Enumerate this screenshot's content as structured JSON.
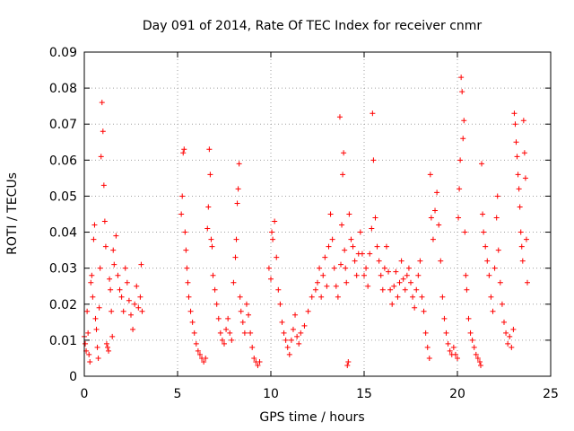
{
  "chart_data": {
    "type": "scatter",
    "title": "Day 091 of 2014, Rate Of TEC Index for receiver cnmr",
    "xlabel": "GPS time / hours",
    "ylabel": "ROTI / TECUs",
    "xlim": [
      0,
      25
    ],
    "ylim": [
      0,
      0.09
    ],
    "xticks": [
      "0",
      "5",
      "10",
      "15",
      "20",
      "25"
    ],
    "xtick_values": [
      0,
      5,
      10,
      15,
      20,
      25
    ],
    "yticks": [
      "0",
      "0.01",
      "0.02",
      "0.03",
      "0.04",
      "0.05",
      "0.06",
      "0.07",
      "0.08",
      "0.09"
    ],
    "ytick_values": [
      0,
      0.01,
      0.02,
      0.03,
      0.04,
      0.05,
      0.06,
      0.07,
      0.08,
      0.09
    ],
    "grid": true,
    "marker": "+",
    "color": "#ff0000",
    "series": [
      {
        "name": "ROTI",
        "points": [
          [
            0.0,
            0.011
          ],
          [
            0.05,
            0.009
          ],
          [
            0.1,
            0.007
          ],
          [
            0.15,
            0.018
          ],
          [
            0.2,
            0.012
          ],
          [
            0.25,
            0.006
          ],
          [
            0.3,
            0.004
          ],
          [
            0.35,
            0.026
          ],
          [
            0.4,
            0.028
          ],
          [
            0.45,
            0.022
          ],
          [
            0.5,
            0.038
          ],
          [
            0.55,
            0.042
          ],
          [
            0.6,
            0.016
          ],
          [
            0.65,
            0.013
          ],
          [
            0.7,
            0.008
          ],
          [
            0.75,
            0.005
          ],
          [
            0.8,
            0.019
          ],
          [
            0.85,
            0.03
          ],
          [
            0.9,
            0.061
          ],
          [
            0.95,
            0.076
          ],
          [
            1.0,
            0.068
          ],
          [
            1.05,
            0.053
          ],
          [
            1.1,
            0.043
          ],
          [
            1.15,
            0.036
          ],
          [
            1.2,
            0.009
          ],
          [
            1.25,
            0.008
          ],
          [
            1.3,
            0.007
          ],
          [
            1.35,
            0.027
          ],
          [
            1.4,
            0.024
          ],
          [
            1.45,
            0.018
          ],
          [
            1.5,
            0.011
          ],
          [
            1.55,
            0.035
          ],
          [
            1.6,
            0.031
          ],
          [
            1.7,
            0.039
          ],
          [
            1.8,
            0.028
          ],
          [
            1.9,
            0.024
          ],
          [
            2.0,
            0.022
          ],
          [
            2.1,
            0.018
          ],
          [
            2.2,
            0.03
          ],
          [
            2.3,
            0.026
          ],
          [
            2.4,
            0.021
          ],
          [
            2.5,
            0.017
          ],
          [
            2.6,
            0.013
          ],
          [
            2.7,
            0.02
          ],
          [
            2.8,
            0.025
          ],
          [
            2.9,
            0.019
          ],
          [
            3.0,
            0.022
          ],
          [
            3.05,
            0.031
          ],
          [
            3.1,
            0.018
          ],
          [
            5.2,
            0.045
          ],
          [
            5.25,
            0.05
          ],
          [
            5.3,
            0.062
          ],
          [
            5.35,
            0.063
          ],
          [
            5.4,
            0.04
          ],
          [
            5.45,
            0.035
          ],
          [
            5.5,
            0.03
          ],
          [
            5.55,
            0.026
          ],
          [
            5.6,
            0.022
          ],
          [
            5.7,
            0.018
          ],
          [
            5.8,
            0.015
          ],
          [
            5.9,
            0.012
          ],
          [
            6.0,
            0.009
          ],
          [
            6.1,
            0.007
          ],
          [
            6.2,
            0.006
          ],
          [
            6.3,
            0.005
          ],
          [
            6.4,
            0.004
          ],
          [
            6.5,
            0.005
          ],
          [
            6.6,
            0.041
          ],
          [
            6.65,
            0.047
          ],
          [
            6.7,
            0.063
          ],
          [
            6.75,
            0.056
          ],
          [
            6.8,
            0.038
          ],
          [
            6.85,
            0.036
          ],
          [
            6.9,
            0.028
          ],
          [
            7.0,
            0.024
          ],
          [
            7.1,
            0.02
          ],
          [
            7.2,
            0.016
          ],
          [
            7.3,
            0.012
          ],
          [
            7.4,
            0.01
          ],
          [
            7.5,
            0.009
          ],
          [
            7.6,
            0.013
          ],
          [
            7.7,
            0.016
          ],
          [
            7.8,
            0.012
          ],
          [
            7.9,
            0.01
          ],
          [
            8.0,
            0.026
          ],
          [
            8.1,
            0.033
          ],
          [
            8.15,
            0.038
          ],
          [
            8.2,
            0.048
          ],
          [
            8.25,
            0.052
          ],
          [
            8.3,
            0.059
          ],
          [
            8.35,
            0.022
          ],
          [
            8.4,
            0.018
          ],
          [
            8.5,
            0.015
          ],
          [
            8.6,
            0.012
          ],
          [
            8.7,
            0.02
          ],
          [
            8.8,
            0.017
          ],
          [
            8.9,
            0.012
          ],
          [
            9.0,
            0.008
          ],
          [
            9.1,
            0.005
          ],
          [
            9.2,
            0.004
          ],
          [
            9.3,
            0.003
          ],
          [
            9.4,
            0.004
          ],
          [
            9.9,
            0.03
          ],
          [
            10.0,
            0.027
          ],
          [
            10.05,
            0.04
          ],
          [
            10.1,
            0.038
          ],
          [
            10.2,
            0.043
          ],
          [
            10.3,
            0.033
          ],
          [
            10.4,
            0.024
          ],
          [
            10.5,
            0.02
          ],
          [
            10.6,
            0.015
          ],
          [
            10.7,
            0.012
          ],
          [
            10.8,
            0.01
          ],
          [
            10.9,
            0.008
          ],
          [
            11.0,
            0.006
          ],
          [
            11.1,
            0.01
          ],
          [
            11.2,
            0.013
          ],
          [
            11.3,
            0.017
          ],
          [
            11.4,
            0.011
          ],
          [
            11.5,
            0.009
          ],
          [
            11.6,
            0.012
          ],
          [
            11.8,
            0.014
          ],
          [
            12.0,
            0.018
          ],
          [
            12.2,
            0.022
          ],
          [
            12.4,
            0.024
          ],
          [
            12.5,
            0.026
          ],
          [
            12.6,
            0.03
          ],
          [
            12.7,
            0.022
          ],
          [
            12.8,
            0.028
          ],
          [
            12.9,
            0.033
          ],
          [
            13.0,
            0.025
          ],
          [
            13.1,
            0.036
          ],
          [
            13.2,
            0.045
          ],
          [
            13.3,
            0.038
          ],
          [
            13.4,
            0.03
          ],
          [
            13.5,
            0.025
          ],
          [
            13.6,
            0.022
          ],
          [
            13.7,
            0.072
          ],
          [
            13.75,
            0.031
          ],
          [
            13.8,
            0.042
          ],
          [
            13.85,
            0.056
          ],
          [
            13.9,
            0.062
          ],
          [
            13.95,
            0.035
          ],
          [
            14.0,
            0.03
          ],
          [
            14.05,
            0.026
          ],
          [
            14.1,
            0.003
          ],
          [
            14.15,
            0.004
          ],
          [
            14.2,
            0.045
          ],
          [
            14.3,
            0.038
          ],
          [
            14.4,
            0.036
          ],
          [
            14.5,
            0.032
          ],
          [
            14.6,
            0.028
          ],
          [
            14.7,
            0.034
          ],
          [
            14.8,
            0.04
          ],
          [
            14.9,
            0.034
          ],
          [
            15.0,
            0.028
          ],
          [
            15.1,
            0.03
          ],
          [
            15.2,
            0.025
          ],
          [
            15.3,
            0.034
          ],
          [
            15.4,
            0.041
          ],
          [
            15.45,
            0.073
          ],
          [
            15.5,
            0.06
          ],
          [
            15.6,
            0.044
          ],
          [
            15.7,
            0.036
          ],
          [
            15.8,
            0.032
          ],
          [
            15.9,
            0.028
          ],
          [
            16.0,
            0.024
          ],
          [
            16.1,
            0.03
          ],
          [
            16.2,
            0.036
          ],
          [
            16.3,
            0.029
          ],
          [
            16.4,
            0.024
          ],
          [
            16.5,
            0.02
          ],
          [
            16.6,
            0.025
          ],
          [
            16.7,
            0.029
          ],
          [
            16.8,
            0.022
          ],
          [
            16.9,
            0.026
          ],
          [
            17.0,
            0.032
          ],
          [
            17.1,
            0.027
          ],
          [
            17.2,
            0.024
          ],
          [
            17.3,
            0.028
          ],
          [
            17.4,
            0.03
          ],
          [
            17.5,
            0.026
          ],
          [
            17.6,
            0.022
          ],
          [
            17.7,
            0.019
          ],
          [
            17.8,
            0.024
          ],
          [
            17.9,
            0.028
          ],
          [
            18.0,
            0.032
          ],
          [
            18.1,
            0.022
          ],
          [
            18.2,
            0.018
          ],
          [
            18.3,
            0.012
          ],
          [
            18.4,
            0.008
          ],
          [
            18.5,
            0.005
          ],
          [
            18.55,
            0.056
          ],
          [
            18.6,
            0.044
          ],
          [
            18.7,
            0.038
          ],
          [
            18.8,
            0.046
          ],
          [
            18.9,
            0.051
          ],
          [
            19.0,
            0.042
          ],
          [
            19.1,
            0.032
          ],
          [
            19.2,
            0.022
          ],
          [
            19.3,
            0.016
          ],
          [
            19.4,
            0.012
          ],
          [
            19.5,
            0.009
          ],
          [
            19.6,
            0.007
          ],
          [
            19.7,
            0.006
          ],
          [
            19.8,
            0.008
          ],
          [
            19.9,
            0.006
          ],
          [
            20.0,
            0.005
          ],
          [
            20.05,
            0.044
          ],
          [
            20.1,
            0.052
          ],
          [
            20.15,
            0.06
          ],
          [
            20.2,
            0.083
          ],
          [
            20.25,
            0.079
          ],
          [
            20.3,
            0.066
          ],
          [
            20.35,
            0.071
          ],
          [
            20.4,
            0.04
          ],
          [
            20.45,
            0.028
          ],
          [
            20.5,
            0.024
          ],
          [
            20.6,
            0.016
          ],
          [
            20.7,
            0.012
          ],
          [
            20.8,
            0.01
          ],
          [
            20.9,
            0.008
          ],
          [
            21.0,
            0.006
          ],
          [
            21.1,
            0.005
          ],
          [
            21.2,
            0.004
          ],
          [
            21.25,
            0.003
          ],
          [
            21.3,
            0.059
          ],
          [
            21.35,
            0.045
          ],
          [
            21.4,
            0.04
          ],
          [
            21.5,
            0.036
          ],
          [
            21.6,
            0.032
          ],
          [
            21.7,
            0.028
          ],
          [
            21.8,
            0.022
          ],
          [
            21.9,
            0.018
          ],
          [
            22.0,
            0.03
          ],
          [
            22.1,
            0.044
          ],
          [
            22.15,
            0.05
          ],
          [
            22.2,
            0.035
          ],
          [
            22.3,
            0.026
          ],
          [
            22.4,
            0.02
          ],
          [
            22.5,
            0.015
          ],
          [
            22.6,
            0.012
          ],
          [
            22.7,
            0.009
          ],
          [
            22.8,
            0.011
          ],
          [
            22.9,
            0.008
          ],
          [
            23.0,
            0.013
          ],
          [
            23.05,
            0.073
          ],
          [
            23.1,
            0.07
          ],
          [
            23.15,
            0.065
          ],
          [
            23.2,
            0.061
          ],
          [
            23.25,
            0.056
          ],
          [
            23.3,
            0.052
          ],
          [
            23.35,
            0.047
          ],
          [
            23.4,
            0.04
          ],
          [
            23.45,
            0.036
          ],
          [
            23.5,
            0.032
          ],
          [
            23.55,
            0.071
          ],
          [
            23.6,
            0.062
          ],
          [
            23.65,
            0.055
          ],
          [
            23.7,
            0.038
          ],
          [
            23.75,
            0.026
          ]
        ]
      }
    ]
  }
}
